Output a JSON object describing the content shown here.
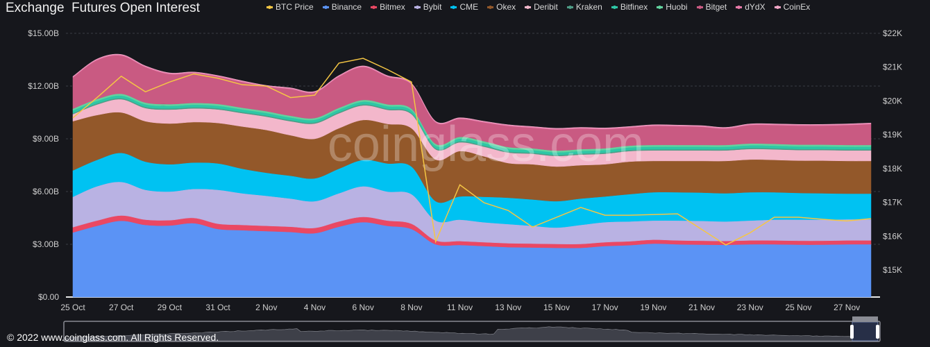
{
  "header": {
    "title": "Exchange  Futures Open Interest"
  },
  "watermark": "coinglass.com",
  "footer": {
    "copyright": "© 2022 www.coinglass.com. All Rights Reserved."
  },
  "chart_data": {
    "type": "area",
    "stacked": true,
    "title": "Exchange  Futures Open Interest",
    "categories": [
      "25 Oct",
      "26 Oct",
      "27 Oct",
      "28 Oct",
      "29 Oct",
      "30 Oct",
      "31 Oct",
      "1 Nov",
      "2 Nov",
      "3 Nov",
      "4 Nov",
      "5 Nov",
      "6 Nov",
      "7 Nov",
      "8 Nov",
      "10 Nov",
      "11 Nov",
      "12 Nov",
      "13 Nov",
      "14 Nov",
      "15 Nov",
      "16 Nov",
      "17 Nov",
      "18 Nov",
      "19 Nov",
      "20 Nov",
      "21 Nov",
      "22 Nov",
      "23 Nov",
      "24 Nov",
      "25 Nov",
      "26 Nov",
      "27 Nov",
      "28 Nov"
    ],
    "x_tick_labels": [
      "25 Oct",
      "27 Oct",
      "29 Oct",
      "31 Oct",
      "2 Nov",
      "4 Nov",
      "6 Nov",
      "8 Nov",
      "11 Nov",
      "13 Nov",
      "15 Nov",
      "17 Nov",
      "19 Nov",
      "21 Nov",
      "23 Nov",
      "25 Nov",
      "27 Nov"
    ],
    "y_left": {
      "unit": "B USD",
      "ylim": [
        0,
        15
      ],
      "ticks": [
        "$0.00",
        "$3.00B",
        "$6.00B",
        "$9.00B",
        "$12.00B",
        "$15.00B"
      ],
      "tick_values": [
        0,
        3,
        6,
        9,
        12,
        15
      ]
    },
    "y_right": {
      "unit": "K USD",
      "ylim": [
        14.2,
        22
      ],
      "ticks": [
        "$15K",
        "$16K",
        "$17K",
        "$18K",
        "$19K",
        "$20K",
        "$21K",
        "$22K"
      ],
      "tick_values": [
        15,
        16,
        17,
        18,
        19,
        20,
        21,
        22
      ]
    },
    "grid": true,
    "legend_position": "top",
    "series": [
      {
        "name": "Binance",
        "color": "#5b93f5",
        "values": [
          3.67,
          4.05,
          4.34,
          4.1,
          4.07,
          4.2,
          3.87,
          3.8,
          3.75,
          3.7,
          3.63,
          4.0,
          4.26,
          4.05,
          3.87,
          3.0,
          2.96,
          2.9,
          2.84,
          2.82,
          2.8,
          2.8,
          2.9,
          2.95,
          3.04,
          3.0,
          2.98,
          2.97,
          3.0,
          3.0,
          2.98,
          2.98,
          3.0,
          3.0
        ]
      },
      {
        "name": "Bitmex",
        "color": "#ea4863",
        "values": [
          0.3,
          0.3,
          0.3,
          0.3,
          0.3,
          0.3,
          0.3,
          0.3,
          0.3,
          0.3,
          0.3,
          0.3,
          0.3,
          0.3,
          0.3,
          0.22,
          0.22,
          0.22,
          0.22,
          0.22,
          0.22,
          0.22,
          0.22,
          0.22,
          0.22,
          0.22,
          0.22,
          0.22,
          0.22,
          0.22,
          0.22,
          0.22,
          0.22,
          0.22
        ]
      },
      {
        "name": "Bybit",
        "color": "#b9b2e3",
        "values": [
          1.73,
          1.95,
          1.91,
          1.7,
          1.63,
          1.65,
          1.93,
          1.8,
          1.71,
          1.6,
          1.52,
          1.6,
          1.74,
          1.65,
          1.68,
          1.13,
          1.22,
          1.13,
          1.09,
          1.01,
          0.93,
          1.08,
          1.14,
          1.13,
          1.09,
          1.13,
          1.13,
          1.11,
          1.13,
          1.18,
          1.2,
          1.2,
          1.2,
          1.2
        ]
      },
      {
        "name": "CME",
        "color": "#00c2f2",
        "values": [
          1.5,
          1.5,
          1.65,
          1.6,
          1.55,
          1.5,
          1.5,
          1.4,
          1.31,
          1.3,
          1.3,
          1.4,
          1.5,
          1.6,
          1.57,
          1.1,
          1.32,
          1.45,
          1.5,
          1.5,
          1.5,
          1.5,
          1.46,
          1.55,
          1.61,
          1.61,
          1.61,
          1.6,
          1.61,
          1.56,
          1.52,
          1.5,
          1.46,
          1.46
        ]
      },
      {
        "name": "Okex",
        "color": "#93582a",
        "values": [
          2.8,
          2.55,
          2.3,
          2.3,
          2.32,
          2.3,
          2.3,
          2.4,
          2.43,
          2.3,
          2.25,
          2.3,
          2.27,
          2.25,
          2.18,
          2.37,
          2.58,
          2.3,
          1.97,
          2.0,
          1.97,
          1.9,
          1.83,
          1.85,
          1.78,
          1.78,
          1.8,
          1.84,
          1.86,
          1.84,
          1.84,
          1.86,
          1.86,
          1.86
        ]
      },
      {
        "name": "Deribit",
        "color": "#f3b7cb",
        "values": [
          0.4,
          0.6,
          0.75,
          0.75,
          0.79,
          0.78,
          0.77,
          0.76,
          0.76,
          0.8,
          0.87,
          0.85,
          0.83,
          0.8,
          0.8,
          0.58,
          0.5,
          0.55,
          0.6,
          0.6,
          0.6,
          0.6,
          0.6,
          0.6,
          0.6,
          0.6,
          0.6,
          0.6,
          0.6,
          0.6,
          0.6,
          0.6,
          0.6,
          0.6
        ]
      },
      {
        "name": "Kraken",
        "color": "#4e9c86",
        "values": [
          0.06,
          0.06,
          0.06,
          0.06,
          0.06,
          0.06,
          0.06,
          0.06,
          0.06,
          0.06,
          0.06,
          0.06,
          0.06,
          0.06,
          0.06,
          0.06,
          0.06,
          0.06,
          0.06,
          0.06,
          0.06,
          0.06,
          0.06,
          0.06,
          0.06,
          0.06,
          0.06,
          0.06,
          0.06,
          0.06,
          0.06,
          0.06,
          0.06,
          0.06
        ]
      },
      {
        "name": "Bitfinex",
        "color": "#2ec7a6",
        "values": [
          0.15,
          0.15,
          0.15,
          0.15,
          0.15,
          0.15,
          0.15,
          0.15,
          0.15,
          0.15,
          0.15,
          0.15,
          0.15,
          0.15,
          0.15,
          0.15,
          0.15,
          0.15,
          0.15,
          0.15,
          0.15,
          0.15,
          0.15,
          0.15,
          0.15,
          0.15,
          0.15,
          0.15,
          0.15,
          0.15,
          0.15,
          0.15,
          0.15,
          0.15
        ]
      },
      {
        "name": "Huobi",
        "color": "#62d39f",
        "values": [
          0.1,
          0.1,
          0.1,
          0.1,
          0.1,
          0.1,
          0.1,
          0.1,
          0.1,
          0.1,
          0.1,
          0.1,
          0.1,
          0.1,
          0.1,
          0.1,
          0.1,
          0.1,
          0.1,
          0.1,
          0.1,
          0.1,
          0.1,
          0.1,
          0.1,
          0.1,
          0.1,
          0.1,
          0.1,
          0.1,
          0.1,
          0.1,
          0.1,
          0.1
        ]
      },
      {
        "name": "Bitget",
        "color": "#c95a82",
        "values": [
          1.77,
          2.21,
          2.17,
          2.02,
          1.71,
          1.69,
          1.55,
          1.46,
          1.4,
          1.52,
          1.45,
          1.77,
          1.87,
          1.57,
          1.38,
          1.22,
          1.02,
          1.07,
          1.2,
          1.17,
          1.2,
          1.17,
          1.09,
          1.02,
          1.08,
          1.06,
          1.03,
          0.93,
          1.05,
          1.07,
          1.08,
          1.08,
          1.13,
          1.18
        ]
      },
      {
        "name": "dYdX",
        "color": "#e77aa9",
        "values": [
          0.05,
          0.05,
          0.05,
          0.05,
          0.05,
          0.05,
          0.05,
          0.05,
          0.05,
          0.05,
          0.05,
          0.05,
          0.05,
          0.05,
          0.05,
          0.05,
          0.05,
          0.05,
          0.05,
          0.05,
          0.05,
          0.05,
          0.05,
          0.05,
          0.05,
          0.05,
          0.05,
          0.05,
          0.05,
          0.05,
          0.05,
          0.05,
          0.05,
          0.05
        ]
      },
      {
        "name": "CoinEx",
        "color": "#f2a6c6",
        "values": [
          0.02,
          0.02,
          0.02,
          0.02,
          0.02,
          0.02,
          0.02,
          0.02,
          0.02,
          0.02,
          0.02,
          0.02,
          0.02,
          0.02,
          0.02,
          0.02,
          0.02,
          0.02,
          0.02,
          0.02,
          0.02,
          0.02,
          0.02,
          0.02,
          0.02,
          0.02,
          0.02,
          0.02,
          0.02,
          0.02,
          0.02,
          0.02,
          0.02,
          0.02
        ]
      }
    ],
    "line_series": {
      "name": "BTC Price",
      "color": "#f5c644",
      "axis": "right",
      "values": [
        19.5,
        20.1,
        20.73,
        20.27,
        20.56,
        20.8,
        20.67,
        20.48,
        20.44,
        20.1,
        20.17,
        21.12,
        21.26,
        20.93,
        20.56,
        15.84,
        17.52,
        16.99,
        16.76,
        16.27,
        16.56,
        16.85,
        16.62,
        16.62,
        16.64,
        16.66,
        16.2,
        15.74,
        16.1,
        16.56,
        16.56,
        16.5,
        16.45,
        16.52
      ]
    }
  }
}
